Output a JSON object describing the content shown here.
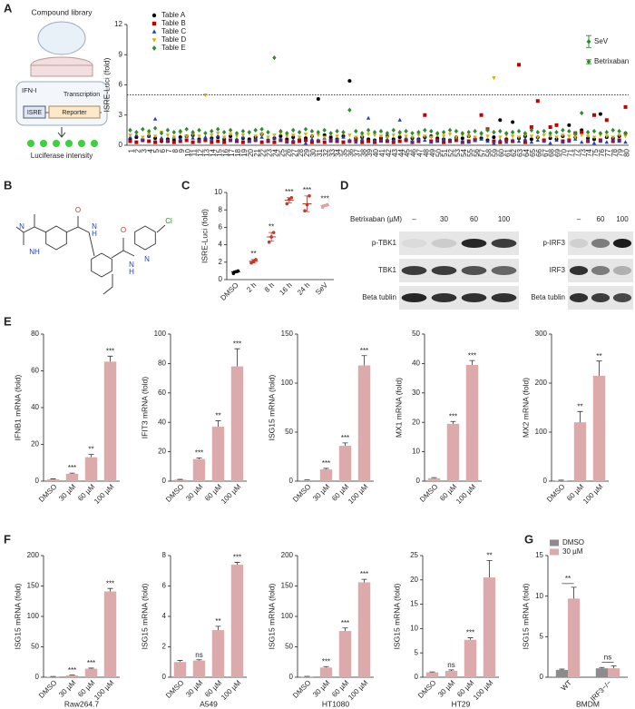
{
  "panel_labels": [
    "A",
    "B",
    "C",
    "D",
    "E",
    "F",
    "G"
  ],
  "schematic": {
    "library": "Compound library",
    "ifn": "IFN-I",
    "transcription": "Transcription",
    "isre": "ISRE",
    "reporter": "Reporter",
    "readout": "Luciferase intensity"
  },
  "structure": {
    "atom_labels": [
      "N",
      "NH",
      "O",
      "N",
      "H",
      "O",
      "N",
      "H",
      "N",
      "Cl"
    ]
  },
  "blot": {
    "treatment": "Betrixaban (µM)",
    "left": {
      "lanes": [
        "–",
        "30",
        "60",
        "100"
      ],
      "rows": [
        "p-TBK1",
        "TBK1",
        "Beta tublin"
      ]
    },
    "right": {
      "lanes": [
        "–",
        "60",
        "100"
      ],
      "rows": [
        "p-IRF3",
        "IRF3",
        "Beta tublin"
      ]
    }
  },
  "chart_data": [
    {
      "type": "scatter",
      "ylabel": "ISRE-Luci (fold)",
      "ylim": [
        0,
        12
      ],
      "yticks": [
        0,
        3,
        6,
        9,
        12
      ],
      "threshold": 5,
      "categories": [
        1,
        2,
        3,
        4,
        5,
        6,
        7,
        8,
        9,
        10,
        11,
        12,
        13,
        14,
        15,
        16,
        17,
        18,
        19,
        20,
        21,
        22,
        23,
        24,
        25,
        26,
        27,
        28,
        29,
        30,
        31,
        32,
        33,
        34,
        35,
        36,
        37,
        38,
        39,
        40,
        41,
        42,
        43,
        44,
        45,
        46,
        47,
        48,
        49,
        50,
        51,
        52,
        53,
        54,
        55,
        56,
        57,
        58,
        59,
        60,
        61,
        62,
        63,
        64,
        65,
        66,
        67,
        68,
        69,
        70,
        71,
        72,
        73,
        74,
        75,
        76,
        77,
        78,
        79,
        80
      ],
      "series": [
        {
          "name": "Table A",
          "color": "#000000",
          "marker": "circle",
          "values": [
            0.6,
            0.8,
            0.5,
            0.9,
            0.7,
            0.4,
            0.6,
            0.5,
            0.8,
            0.9,
            1.0,
            0.6,
            0.5,
            0.7,
            0.8,
            0.6,
            0.9,
            0.5,
            0.7,
            0.6,
            0.8,
            1.1,
            0.5,
            0.7,
            0.9,
            0.6,
            0.8,
            0.5,
            0.7,
            0.9,
            4.6,
            1.0,
            0.8,
            0.6,
            0.9,
            6.4,
            0.7,
            0.8,
            0.6,
            0.5,
            0.7,
            0.9,
            0.6,
            0.8,
            0.5,
            0.7,
            0.6,
            0.8,
            0.9,
            0.7,
            0.6,
            0.5,
            0.8,
            0.7,
            0.9,
            0.6,
            0.7,
            0.5,
            0.8,
            2.5,
            0.6,
            2.3,
            0.7,
            0.9,
            0.6,
            0.8,
            0.5,
            0.7,
            0.6,
            0.9,
            2.0,
            0.8,
            1.5,
            0.7,
            0.6,
            3.1,
            0.8,
            0.7,
            0.9,
            1.2
          ]
        },
        {
          "name": "Table B",
          "color": "#c00000",
          "marker": "square",
          "values": [
            0.4,
            0.3,
            0.5,
            0.4,
            0.3,
            0.5,
            0.4,
            0.3,
            0.4,
            0.5,
            0.3,
            0.4,
            0.5,
            0.3,
            0.4,
            0.3,
            0.5,
            0.4,
            0.3,
            0.4,
            0.5,
            0.3,
            0.4,
            0.3,
            0.5,
            0.4,
            0.3,
            0.4,
            0.5,
            0.3,
            0.4,
            0.3,
            0.5,
            0.4,
            0.3,
            0.4,
            0.5,
            0.3,
            0.4,
            0.3,
            0.5,
            0.4,
            0.3,
            0.4,
            0.5,
            0.3,
            0.4,
            3.0,
            0.4,
            0.5,
            0.3,
            0.4,
            0.5,
            0.3,
            0.4,
            0.5,
            3.0,
            1.6,
            0.4,
            0.3,
            0.5,
            0.4,
            8.0,
            0.3,
            1.8,
            4.4,
            0.5,
            1.8,
            2.0,
            0.4,
            0.5,
            1.2,
            1.3,
            0.4,
            3.0,
            0.5,
            2.5,
            0.4,
            0.5,
            3.8
          ]
        },
        {
          "name": "Table C",
          "color": "#1f3fbf",
          "marker": "triangle",
          "values": [
            0.8,
            1.0,
            0.6,
            0.9,
            2.6,
            0.7,
            0.5,
            0.8,
            0.6,
            0.9,
            0.7,
            0.5,
            0.8,
            0.6,
            0.9,
            0.7,
            0.5,
            0.6,
            0.8,
            0.4,
            0.6,
            0.8,
            0.5,
            0.7,
            0.6,
            0.3,
            0.5,
            0.7,
            0.2,
            0.6,
            0.5,
            0.7,
            0.4,
            0.6,
            0.8,
            0.5,
            0.3,
            0.6,
            2.7,
            0.5,
            0.4,
            0.6,
            0.5,
            2.5,
            0.7,
            0.4,
            0.6,
            0.5,
            0.3,
            0.4,
            0.6,
            0.5,
            0.7,
            0.4,
            0.3,
            0.5,
            0.6,
            0.4,
            0.2,
            0.5,
            0.3,
            0.5,
            0.4,
            0.6,
            0.3,
            0.5,
            0.4,
            0.2,
            0.5,
            0.3,
            0.4,
            0.6,
            0.3,
            0.5,
            0.2,
            0.4,
            0.3,
            0.5,
            0.4,
            0.3
          ]
        },
        {
          "name": "Table D",
          "color": "#d4b000",
          "marker": "triangle-down",
          "values": [
            1.0,
            1.2,
            0.8,
            1.1,
            0.9,
            1.3,
            1.0,
            0.8,
            1.2,
            0.9,
            1.1,
            0.9,
            5.0,
            1.0,
            1.2,
            0.8,
            1.1,
            0.9,
            1.0,
            1.2,
            0.9,
            1.1,
            0.8,
            1.0,
            1.2,
            0.9,
            1.0,
            0.8,
            1.1,
            0.9,
            1.0,
            0.8,
            1.1,
            0.9,
            1.2,
            1.0,
            0.8,
            0.9,
            1.1,
            1.0,
            0.9,
            0.8,
            1.0,
            1.1,
            0.9,
            0.8,
            1.0,
            0.9,
            0.8,
            1.0,
            0.9,
            1.1,
            0.8,
            1.0,
            0.9,
            0.8,
            1.0,
            0.9,
            6.7,
            0.8,
            1.0,
            0.9,
            0.8,
            1.0,
            0.9,
            0.8,
            1.0,
            0.9,
            0.8,
            1.0,
            0.9,
            0.8,
            1.0,
            0.9,
            0.8,
            1.0,
            0.9,
            0.8,
            1.0,
            0.9
          ]
        },
        {
          "name": "Table E",
          "color": "#2e8b2e",
          "marker": "diamond",
          "values": [
            1.5,
            1.3,
            1.6,
            1.4,
            1.7,
            1.2,
            1.5,
            1.3,
            1.4,
            1.6,
            1.3,
            1.5,
            1.2,
            1.4,
            1.6,
            1.3,
            1.5,
            1.2,
            1.4,
            1.3,
            1.5,
            1.6,
            1.3,
            8.7,
            1.4,
            1.2,
            1.5,
            1.3,
            1.6,
            1.4,
            1.3,
            1.5,
            1.2,
            1.4,
            1.3,
            3.5,
            1.4,
            1.2,
            1.5,
            1.3,
            1.4,
            1.2,
            1.5,
            1.3,
            1.4,
            1.2,
            1.3,
            1.5,
            1.4,
            1.2,
            1.3,
            1.5,
            1.4,
            1.2,
            1.3,
            1.4,
            1.2,
            1.5,
            1.3,
            1.4,
            1.2,
            1.3,
            1.4,
            1.2,
            1.5,
            1.3,
            1.4,
            1.2,
            1.3,
            1.5,
            1.4,
            1.2,
            3.2,
            1.3,
            1.4,
            1.2,
            1.3,
            1.5,
            1.4,
            1.2
          ]
        }
      ],
      "references": [
        {
          "name": "SeV",
          "color": "#2e8b2e",
          "value": 10.3,
          "error": 0.6
        },
        {
          "name": "Betrixaban",
          "color": "#2e8b2e",
          "value": 8.3,
          "error": 0.2
        }
      ]
    },
    {
      "type": "strip",
      "ylabel": "ISRE-Luci (fold)",
      "ylim": [
        0,
        10
      ],
      "yticks": [
        0,
        2,
        4,
        6,
        8,
        10
      ],
      "categories": [
        "DMSO",
        "2 h",
        "8 h",
        "16 h",
        "24 h",
        "SeV"
      ],
      "colors": [
        "#000000",
        "#c0392b",
        "#c0392b",
        "#c0392b",
        "#c0392b",
        "#e3a0a0"
      ],
      "points": [
        [
          0.7,
          0.9,
          1.0
        ],
        [
          1.9,
          2.1,
          2.3
        ],
        [
          4.3,
          4.9,
          5.4
        ],
        [
          8.7,
          9.2,
          9.4
        ],
        [
          7.9,
          8.6,
          9.6
        ],
        [
          8.3,
          8.5,
          8.6
        ]
      ],
      "means": [
        0.9,
        2.1,
        4.9,
        9.1,
        8.7,
        8.5
      ],
      "errors": [
        0.1,
        0.2,
        0.5,
        0.3,
        0.9,
        0.1
      ],
      "annotations": [
        null,
        "**",
        "**",
        "***",
        "***",
        "***"
      ]
    },
    {
      "type": "bar",
      "ylabel": "IFNB1 mRNA (fold)",
      "ylim": [
        0,
        80
      ],
      "yticks": [
        0,
        20,
        40,
        60,
        80
      ],
      "color": "#dcaaaa",
      "categories": [
        "DMSO",
        "30 µM",
        "60 µM",
        "100 µM"
      ],
      "values": [
        1,
        4,
        13,
        65
      ],
      "errors": [
        0.2,
        0.4,
        1.5,
        3
      ],
      "annotations": [
        null,
        "***",
        "**",
        "***"
      ]
    },
    {
      "type": "bar",
      "ylabel": "IFIT3 mRNA (fold)",
      "ylim": [
        0,
        100
      ],
      "yticks": [
        0,
        20,
        40,
        60,
        80,
        100
      ],
      "color": "#dcaaaa",
      "categories": [
        "DMSO",
        "30 µM",
        "60 µM",
        "100 µM"
      ],
      "values": [
        1,
        15,
        37,
        78
      ],
      "errors": [
        0.2,
        0.8,
        4,
        12
      ],
      "annotations": [
        null,
        "***",
        "**",
        "***"
      ]
    },
    {
      "type": "bar",
      "ylabel": "ISG15 mRNA (fold)",
      "ylim": [
        0,
        150
      ],
      "yticks": [
        0,
        50,
        100,
        150
      ],
      "color": "#dcaaaa",
      "categories": [
        "DMSO",
        "30 µM",
        "60 µM",
        "100 µM"
      ],
      "values": [
        1,
        12,
        36,
        118
      ],
      "errors": [
        0.3,
        1,
        3,
        10
      ],
      "annotations": [
        null,
        "***",
        "***",
        "***"
      ]
    },
    {
      "type": "bar",
      "ylabel": "MX1 mRNA (fold)",
      "ylim": [
        0,
        50
      ],
      "yticks": [
        0,
        10,
        20,
        30,
        40,
        50
      ],
      "color": "#dcaaaa",
      "categories": [
        "DMSO",
        "60 µM",
        "100 µM"
      ],
      "values": [
        1,
        19.5,
        39.5
      ],
      "errors": [
        0.2,
        0.8,
        1.5
      ],
      "annotations": [
        null,
        "***",
        "***"
      ]
    },
    {
      "type": "bar",
      "ylabel": "MX2 mRNA (fold)",
      "ylim": [
        0,
        300
      ],
      "yticks": [
        0,
        100,
        200,
        300
      ],
      "color": "#dcaaaa",
      "categories": [
        "DMSO",
        "60 µM",
        "100 µM"
      ],
      "values": [
        1,
        120,
        215
      ],
      "errors": [
        1,
        22,
        30
      ],
      "annotations": [
        null,
        "**",
        "**"
      ]
    },
    {
      "type": "bar",
      "ylabel": "ISG15 mRNA (fold)",
      "xlabel": "Raw264.7",
      "ylim": [
        0,
        200
      ],
      "yticks": [
        0,
        50,
        100,
        150,
        200
      ],
      "color": "#dcaaaa",
      "categories": [
        "DMSO",
        "30 µM",
        "60 µM",
        "100 µM"
      ],
      "values": [
        1,
        3,
        14,
        141
      ],
      "errors": [
        0.3,
        0.5,
        1,
        5
      ],
      "annotations": [
        null,
        "***",
        "***",
        "***"
      ]
    },
    {
      "type": "bar",
      "ylabel": "ISG15 mRNA (fold)",
      "xlabel": "A549",
      "ylim": [
        0,
        8
      ],
      "yticks": [
        0,
        2,
        4,
        6,
        8
      ],
      "color": "#dcaaaa",
      "categories": [
        "DMSO",
        "30 µM",
        "60 µM",
        "100 µM"
      ],
      "values": [
        1,
        1.1,
        3.1,
        7.4
      ],
      "errors": [
        0.1,
        0.05,
        0.25,
        0.15
      ],
      "annotations": [
        null,
        "ns",
        "**",
        "***"
      ]
    },
    {
      "type": "bar",
      "ylabel": "ISG15 mRNA (fold)",
      "xlabel": "HT1080",
      "ylim": [
        0,
        200
      ],
      "yticks": [
        0,
        50,
        100,
        150,
        200
      ],
      "color": "#dcaaaa",
      "categories": [
        "DMSO",
        "30 µM",
        "60 µM",
        "100 µM"
      ],
      "values": [
        1,
        16,
        76,
        156
      ],
      "errors": [
        0.5,
        1.5,
        5,
        5
      ],
      "annotations": [
        null,
        "***",
        "***",
        "***"
      ]
    },
    {
      "type": "bar",
      "ylabel": "ISG15 mRNA (fold)",
      "xlabel": "HT29",
      "ylim": [
        0,
        25
      ],
      "yticks": [
        0,
        5,
        10,
        15,
        20,
        25
      ],
      "color": "#dcaaaa",
      "categories": [
        "DMSO",
        "30 µM",
        "60 µM",
        "100 µM"
      ],
      "values": [
        1,
        1.3,
        7.7,
        20.5
      ],
      "errors": [
        0.1,
        0.2,
        0.4,
        3.5
      ],
      "annotations": [
        null,
        "ns",
        "***",
        "**"
      ]
    },
    {
      "type": "grouped_bar",
      "ylabel": "ISG15 mRNA (fold)",
      "xlabel": "BMDM",
      "ylim": [
        0,
        15
      ],
      "yticks": [
        0,
        5,
        10,
        15
      ],
      "categories": [
        "WT",
        "IRF3−/−"
      ],
      "series": [
        {
          "name": "DMSO",
          "color": "#8c8c8c",
          "values": [
            0.9,
            1.1
          ],
          "errors": [
            0.1,
            0.1
          ]
        },
        {
          "name": "30 µM",
          "color": "#dcaaaa",
          "values": [
            9.7,
            1.1
          ],
          "errors": [
            1.4,
            0.3
          ]
        }
      ],
      "annotations": [
        "**",
        "ns"
      ]
    }
  ]
}
